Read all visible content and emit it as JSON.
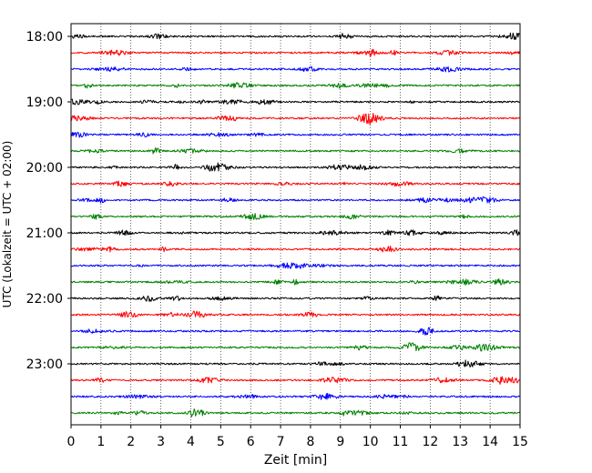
{
  "chart_data": {
    "type": "line",
    "xlabel": "Zeit  [min]",
    "ylabel": "UTC (Lokalzeit = UTC + 02:00)",
    "xlim": [
      0,
      15
    ],
    "x_ticks": [
      "0",
      "1",
      "2",
      "3",
      "4",
      "5",
      "6",
      "7",
      "8",
      "9",
      "10",
      "11",
      "12",
      "13",
      "14",
      "15"
    ],
    "y_ticks": [
      "18:00",
      "19:00",
      "20:00",
      "21:00",
      "22:00",
      "23:00"
    ],
    "grid": "vertical dotted at each minute",
    "trace_interval_minutes": 15,
    "trace_colors": [
      "#000000",
      "#ff0000",
      "#0000ff",
      "#008000"
    ],
    "traces": [
      {
        "start": "18:00"
      },
      {
        "start": "18:15"
      },
      {
        "start": "18:30"
      },
      {
        "start": "18:45"
      },
      {
        "start": "19:00"
      },
      {
        "start": "19:15"
      },
      {
        "start": "19:30"
      },
      {
        "start": "19:45"
      },
      {
        "start": "20:00"
      },
      {
        "start": "20:15"
      },
      {
        "start": "20:30"
      },
      {
        "start": "20:45"
      },
      {
        "start": "21:00"
      },
      {
        "start": "21:15"
      },
      {
        "start": "21:30"
      },
      {
        "start": "21:45"
      },
      {
        "start": "22:00"
      },
      {
        "start": "22:15"
      },
      {
        "start": "22:30"
      },
      {
        "start": "22:45"
      },
      {
        "start": "23:00"
      },
      {
        "start": "23:15"
      },
      {
        "start": "23:30"
      },
      {
        "start": "23:45"
      }
    ]
  }
}
